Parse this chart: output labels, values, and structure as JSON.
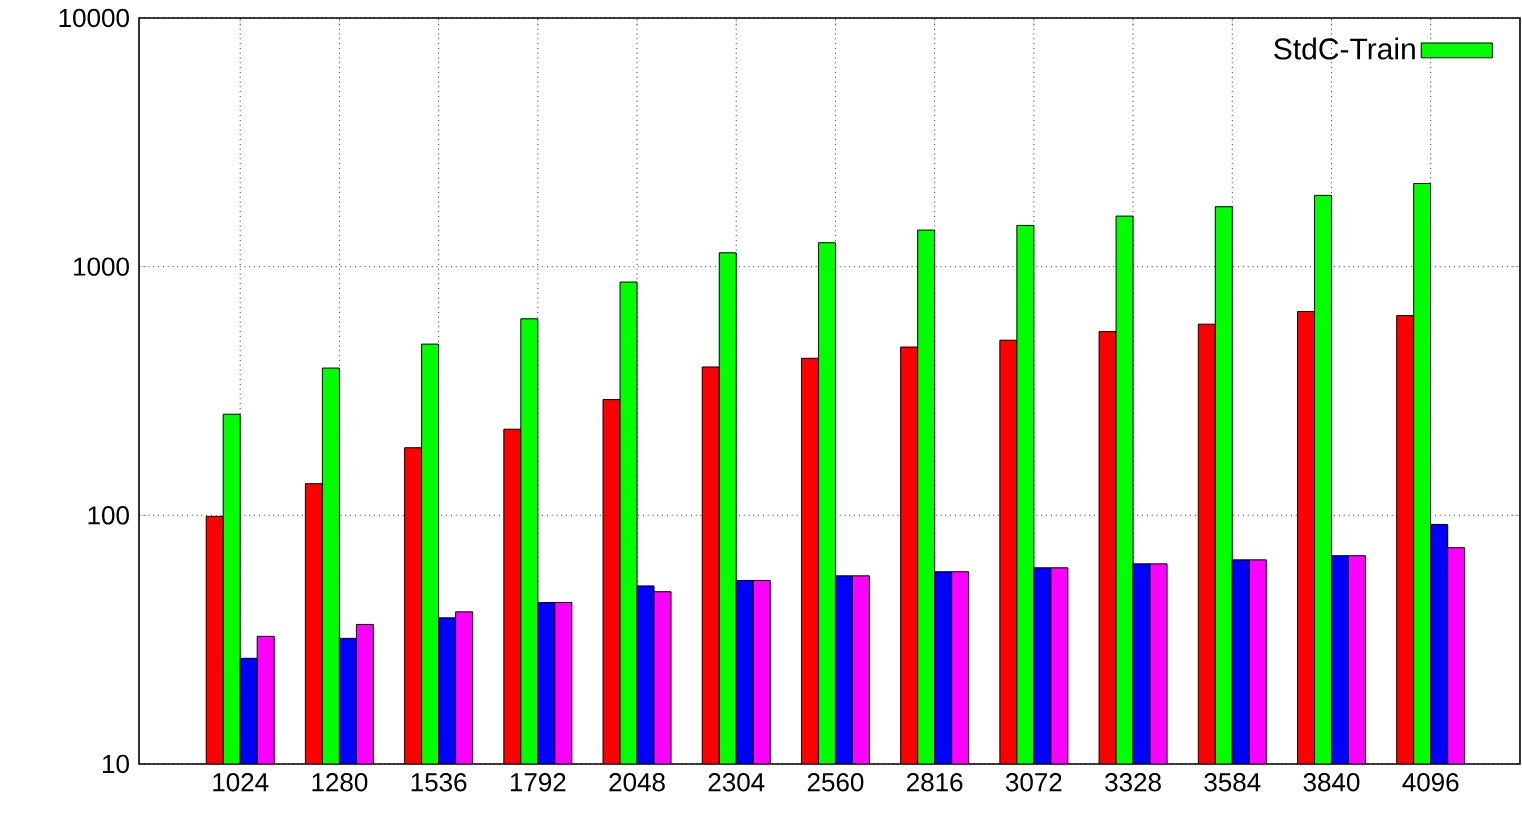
{
  "chart_data": {
    "type": "bar",
    "log": "y",
    "grid": true,
    "legend": "top right",
    "categories": [
      "1024",
      "1280",
      "1536",
      "1792",
      "2048",
      "2304",
      "2560",
      "2816",
      "3072",
      "3328",
      "3584",
      "3840",
      "4096"
    ],
    "ylim": [
      10,
      10000
    ],
    "yticks": [
      10,
      100,
      1000,
      10000
    ],
    "series": [
      {
        "color": "#ff0000",
        "values": [
          99,
          134,
          187,
          222,
          292,
          395,
          428,
          475,
          506,
          548,
          587,
          660,
          636
        ]
      },
      {
        "name": "StdC-Train",
        "color": "#00ff00",
        "values": [
          255,
          391,
          488,
          617,
          867,
          1137,
          1248,
          1403,
          1465,
          1597,
          1742,
          1935,
          2162
        ]
      },
      {
        "color": "#0000ff",
        "values": [
          26.6,
          32,
          38.7,
          44.6,
          52,
          54.7,
          57.1,
          59.3,
          61.5,
          63.8,
          66.2,
          68.8,
          91.9
        ]
      },
      {
        "color": "#ff00ff",
        "values": [
          32.6,
          36.4,
          40.9,
          44.6,
          49.3,
          54.7,
          57.1,
          59.3,
          61.5,
          63.8,
          66.2,
          68.8,
          74.1
        ]
      }
    ]
  }
}
